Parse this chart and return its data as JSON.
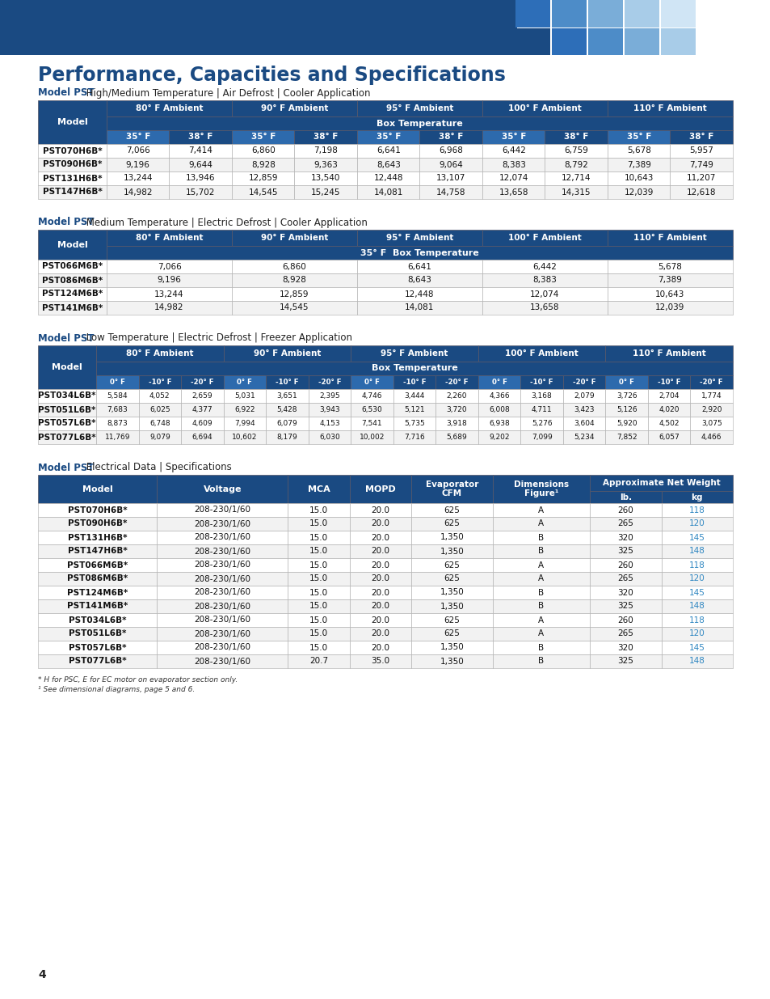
{
  "title": "Performance, Capacities and Specifications",
  "dark_blue": "#1a4a82",
  "medium_blue": "#2d6aad",
  "text_blue": "#1a4a82",
  "cyan_kg": "#2e86c1",
  "white": "#ffffff",
  "light_gray": "#f2f2f2",
  "border": "#aaaaaa",
  "table1_subtitle_bold": "Model PST",
  "table1_subtitle_rest": " High/Medium Temperature | Air Defrost | Cooler Application",
  "table1_ambient_headers": [
    "80° F Ambient",
    "90° F Ambient",
    "95° F Ambient",
    "100° F Ambient",
    "110° F Ambient"
  ],
  "table1_box_temp": "Box Temperature",
  "table1_sub_headers": [
    "35° F",
    "38° F",
    "35° F",
    "38° F",
    "35° F",
    "38° F",
    "35° F",
    "38° F",
    "35° F",
    "38° F"
  ],
  "table1_models": [
    "PST070H6B*",
    "PST090H6B*",
    "PST131H6B*",
    "PST147H6B*"
  ],
  "table1_data": [
    [
      7066,
      7414,
      6860,
      7198,
      6641,
      6968,
      6442,
      6759,
      5678,
      5957
    ],
    [
      9196,
      9644,
      8928,
      9363,
      8643,
      9064,
      8383,
      8792,
      7389,
      7749
    ],
    [
      13244,
      13946,
      12859,
      13540,
      12448,
      13107,
      12074,
      12714,
      10643,
      11207
    ],
    [
      14982,
      15702,
      14545,
      15245,
      14081,
      14758,
      13658,
      14315,
      12039,
      12618
    ]
  ],
  "table2_subtitle_bold": "Model PST",
  "table2_subtitle_rest": " Medium Temperature | Electric Defrost | Cooler Application",
  "table2_ambient_headers": [
    "80° F Ambient",
    "90° F Ambient",
    "95° F Ambient",
    "100° F Ambient",
    "110° F Ambient"
  ],
  "table2_box_temp": "35° F  Box Temperature",
  "table2_models": [
    "PST066M6B*",
    "PST086M6B*",
    "PST124M6B*",
    "PST141M6B*"
  ],
  "table2_data": [
    [
      7066,
      6860,
      6641,
      6442,
      5678
    ],
    [
      9196,
      8928,
      8643,
      8383,
      7389
    ],
    [
      13244,
      12859,
      12448,
      12074,
      10643
    ],
    [
      14982,
      14545,
      14081,
      13658,
      12039
    ]
  ],
  "table3_subtitle_bold": "Model PST",
  "table3_subtitle_rest": " Low Temperature | Electric Defrost | Freezer Application",
  "table3_ambient_headers": [
    "80° F Ambient",
    "90° F Ambient",
    "95° F Ambient",
    "100° F Ambient",
    "110° F Ambient"
  ],
  "table3_box_temp": "Box Temperature",
  "table3_sub_headers": [
    "0° F",
    "-10° F",
    "-20° F",
    "0° F",
    "-10° F",
    "-20° F",
    "0° F",
    "-10° F",
    "-20° F",
    "0° F",
    "-10° F",
    "-20° F",
    "0° F",
    "-10° F",
    "-20° F"
  ],
  "table3_models": [
    "PST034L6B*",
    "PST051L6B*",
    "PST057L6B*",
    "PST077L6B*"
  ],
  "table3_data": [
    [
      5584,
      4052,
      2659,
      5031,
      3651,
      2395,
      4746,
      3444,
      2260,
      4366,
      3168,
      2079,
      3726,
      2704,
      1774
    ],
    [
      7683,
      6025,
      4377,
      6922,
      5428,
      3943,
      6530,
      5121,
      3720,
      6008,
      4711,
      3423,
      5126,
      4020,
      2920
    ],
    [
      8873,
      6748,
      4609,
      7994,
      6079,
      4153,
      7541,
      5735,
      3918,
      6938,
      5276,
      3604,
      5920,
      4502,
      3075
    ],
    [
      11769,
      9079,
      6694,
      10602,
      8179,
      6030,
      10002,
      7716,
      5689,
      9202,
      7099,
      5234,
      7852,
      6057,
      4466
    ]
  ],
  "table4_subtitle_bold": "Model PST",
  "table4_subtitle_rest": " Electrical Data | Specifications",
  "table4_models": [
    "PST070H6B*",
    "PST090H6B*",
    "PST131H6B*",
    "PST147H6B*",
    "PST066M6B*",
    "PST086M6B*",
    "PST124M6B*",
    "PST141M6B*",
    "PST034L6B*",
    "PST051L6B*",
    "PST057L6B*",
    "PST077L6B*"
  ],
  "table4_voltage": [
    "208-230/1/60",
    "208-230/1/60",
    "208-230/1/60",
    "208-230/1/60",
    "208-230/1/60",
    "208-230/1/60",
    "208-230/1/60",
    "208-230/1/60",
    "208-230/1/60",
    "208-230/1/60",
    "208-230/1/60",
    "208-230/1/60"
  ],
  "table4_mca": [
    15.0,
    15.0,
    15.0,
    15.0,
    15.0,
    15.0,
    15.0,
    15.0,
    15.0,
    15.0,
    15.0,
    20.7
  ],
  "table4_mopd": [
    20.0,
    20.0,
    20.0,
    20.0,
    20.0,
    20.0,
    20.0,
    20.0,
    20.0,
    20.0,
    20.0,
    35.0
  ],
  "table4_cfm": [
    625,
    625,
    1350,
    1350,
    625,
    625,
    1350,
    1350,
    625,
    625,
    1350,
    1350
  ],
  "table4_figure": [
    "A",
    "A",
    "B",
    "B",
    "A",
    "A",
    "B",
    "B",
    "A",
    "A",
    "B",
    "B"
  ],
  "table4_lb": [
    260,
    265,
    320,
    325,
    260,
    265,
    320,
    325,
    260,
    265,
    320,
    325
  ],
  "table4_kg": [
    118,
    120,
    145,
    148,
    118,
    120,
    145,
    148,
    118,
    120,
    145,
    148
  ],
  "footnote1": "* H for PSC, E for EC motor on evaporator section only.",
  "footnote2": "¹ See dimensional diagrams, page 5 and 6.",
  "page_number": "4"
}
